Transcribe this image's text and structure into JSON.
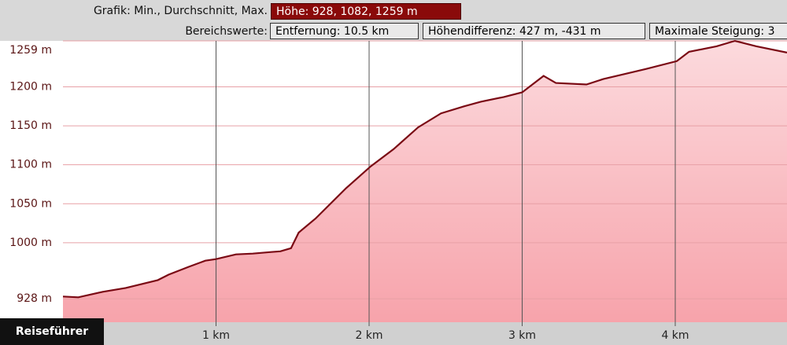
{
  "header": {
    "graph_label": "Grafik: Min., Durchschnitt, Max.",
    "height_box": "Höhe: 928, 1082, 1259 m",
    "range_label": "Bereichswerte:",
    "boxes": [
      "Entfernung: 10.5 km",
      "Höhendifferenz: 427 m, -431 m",
      "Maximale Steigung: 3"
    ]
  },
  "button": "Reiseführer",
  "chart_data": {
    "type": "area",
    "line_color": "#7a0a14",
    "fill_color": "#f7a3ab",
    "grid": true,
    "x": [
      0,
      0.1,
      0.26,
      0.41,
      0.62,
      0.69,
      0.82,
      0.93,
      1.0,
      1.13,
      1.24,
      1.36,
      1.42,
      1.49,
      1.54,
      1.65,
      1.85,
      2.01,
      2.16,
      2.32,
      2.47,
      2.62,
      2.73,
      2.88,
      3.0,
      3.14,
      3.22,
      3.42,
      3.53,
      3.68,
      3.81,
      4.01,
      4.09,
      4.27,
      4.39,
      4.53,
      4.73
    ],
    "values": [
      931,
      930,
      937,
      942,
      952,
      959,
      969,
      977,
      979,
      985,
      986,
      988,
      989,
      993,
      1013,
      1031,
      1070,
      1098,
      1120,
      1148,
      1166,
      1175,
      1181,
      1187,
      1193,
      1214,
      1205,
      1203,
      1210,
      1217,
      1223,
      1233,
      1245,
      1252,
      1259,
      1252,
      1244
    ],
    "xlim": [
      0,
      4.73
    ],
    "ylim": [
      898,
      1259
    ],
    "xticks": [
      {
        "value": 1,
        "label": "1 km"
      },
      {
        "value": 2,
        "label": "2 km"
      },
      {
        "value": 3,
        "label": "3 km"
      },
      {
        "value": 4,
        "label": "4 km"
      }
    ],
    "yticks": [
      {
        "value": 928,
        "label": "928 m"
      },
      {
        "value": 1000,
        "label": "1000 m"
      },
      {
        "value": 1050,
        "label": "1050 m"
      },
      {
        "value": 1100,
        "label": "1100 m"
      },
      {
        "value": 1150,
        "label": "1150 m"
      },
      {
        "value": 1200,
        "label": "1200 m"
      },
      {
        "value": 1259,
        "label": "1259 m"
      }
    ]
  }
}
